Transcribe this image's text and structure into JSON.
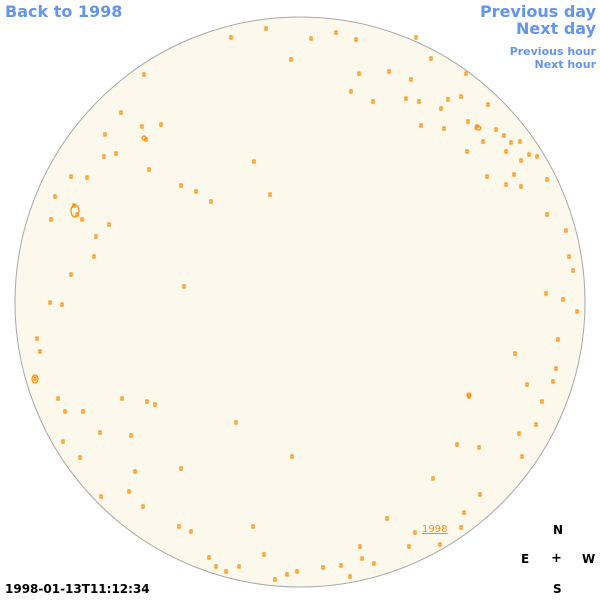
{
  "nav": {
    "back": "Back to 1998",
    "previous_day": "Previous day",
    "next_day": "Next day",
    "previous_hour": "Previous hour",
    "next_hour": "Next hour"
  },
  "timestamp": "1998-01-13T11:12:34",
  "year_label": "1998",
  "compass": {
    "north": "N",
    "east": "E",
    "center": "+",
    "west": "W",
    "south": "S"
  },
  "colors": {
    "link": "#6495ed",
    "disk_fill": "#fdf8ec",
    "disk_stroke": "#a8a8a8",
    "feature": "#ff8c00"
  }
}
